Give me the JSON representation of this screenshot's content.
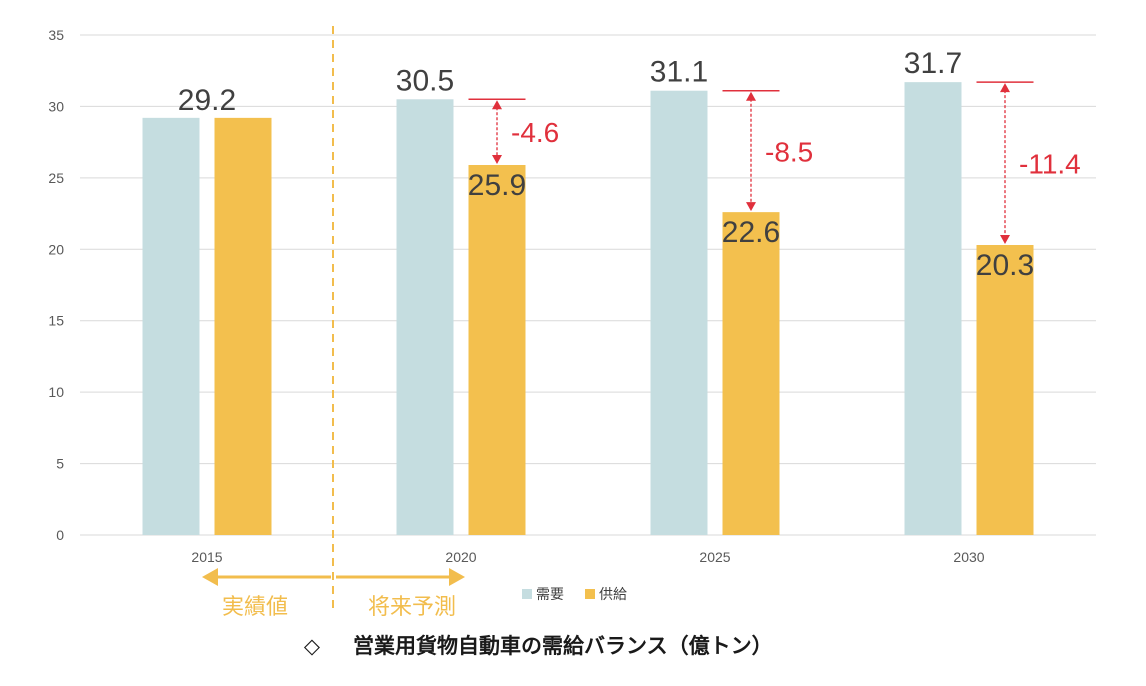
{
  "chart_data": {
    "type": "bar",
    "categories": [
      "2015",
      "2020",
      "2025",
      "2030"
    ],
    "series": [
      {
        "name": "需要",
        "values": [
          29.2,
          30.5,
          31.1,
          31.7
        ]
      },
      {
        "name": "供給",
        "values": [
          29.2,
          25.9,
          22.6,
          20.3
        ]
      }
    ],
    "value_labels": {
      "demand": [
        "",
        "30.5",
        "31.1",
        "31.7"
      ],
      "supply": [
        "29.2",
        "25.9",
        "22.6",
        "20.3"
      ]
    },
    "gaps": [
      "",
      "-4.6",
      "-8.5",
      "-11.4"
    ],
    "ylim": [
      0,
      35
    ],
    "yticks": [
      "0",
      "5",
      "10",
      "15",
      "20",
      "25",
      "30",
      "35"
    ],
    "grid": true,
    "legend_position": "bottom",
    "colors": {
      "demand": "#c5dde0",
      "supply": "#f3c04e",
      "gap": "#e0303c",
      "period": "#f2bd4d"
    },
    "periods": {
      "actual": "実績値",
      "forecast": "将来予測"
    },
    "caption_symbol": "◇",
    "caption": "営業用貨物自動車の需給バランス（億トン）"
  }
}
